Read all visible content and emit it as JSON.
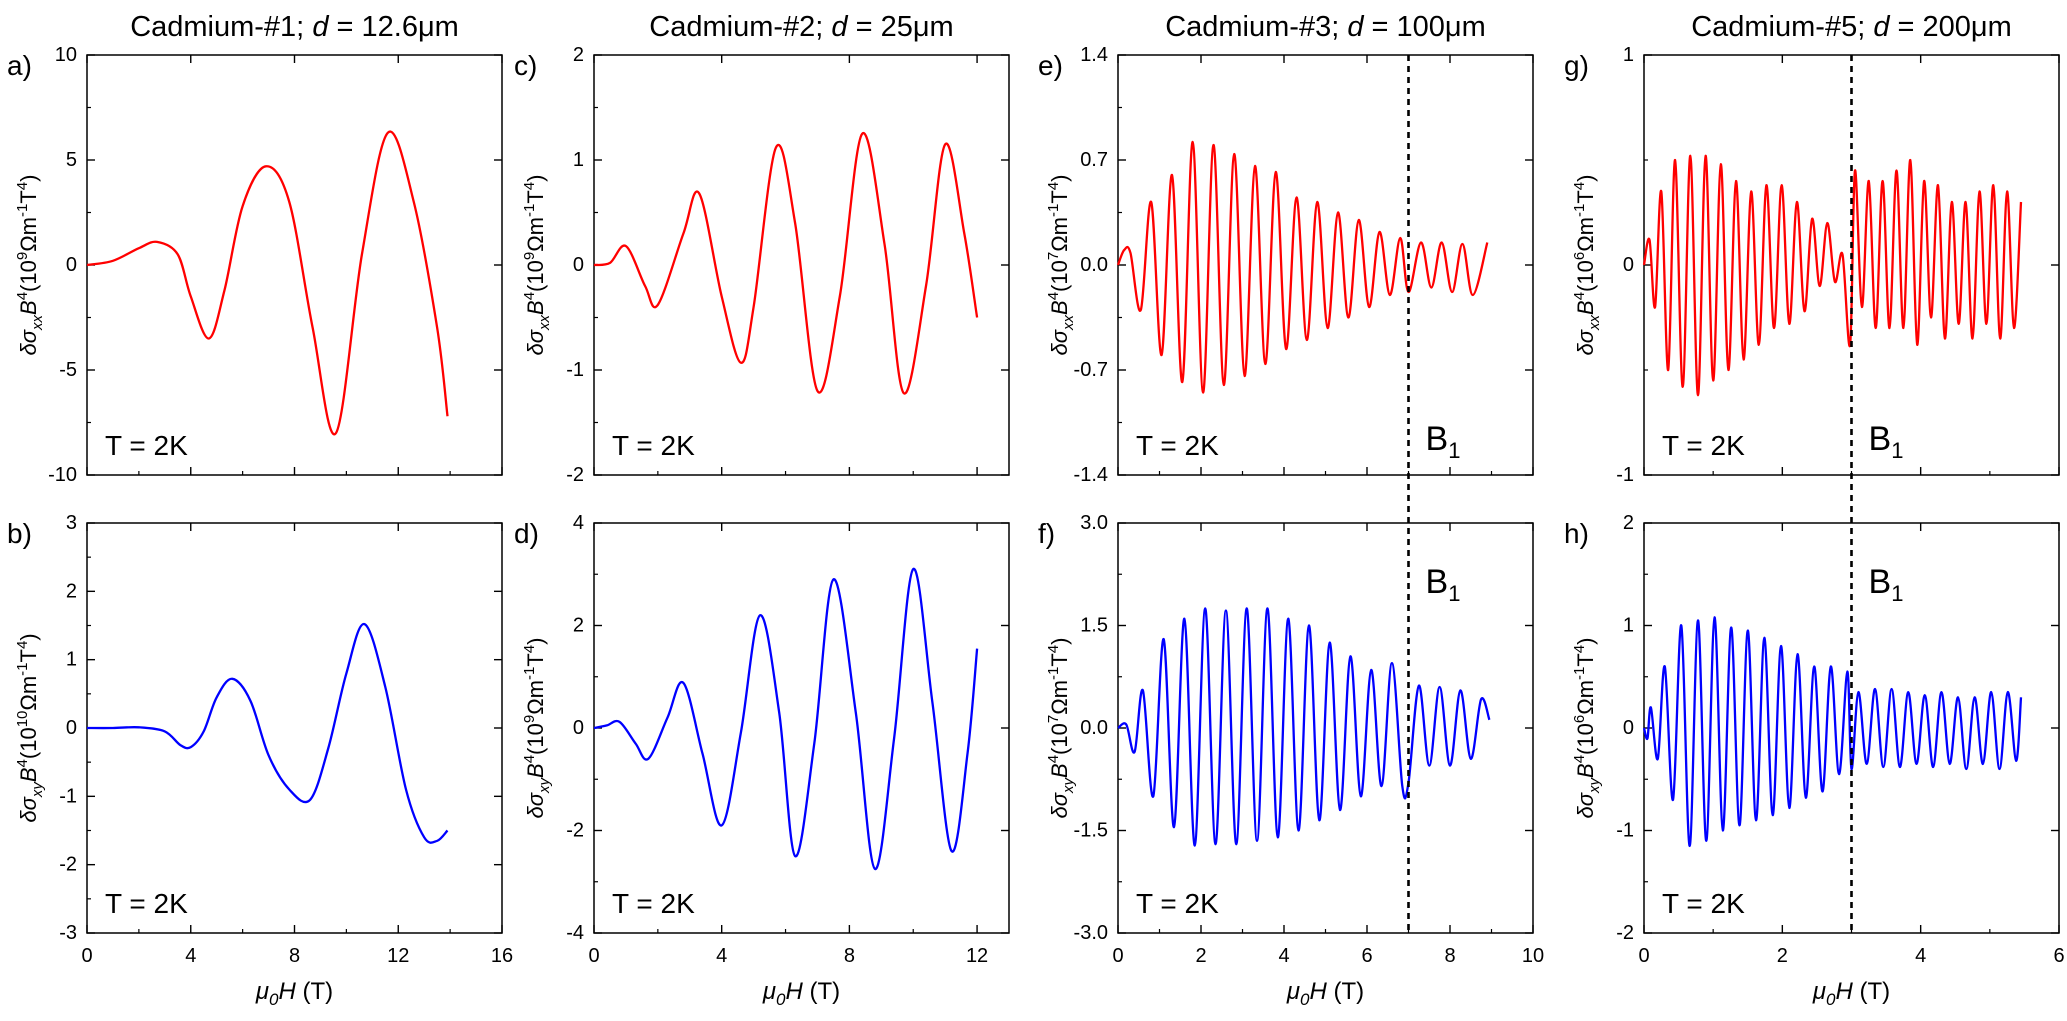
{
  "figure": {
    "x_axis_label": "μ0H (T)",
    "condition_label": "T = 2K",
    "marker_label": "B1"
  },
  "columns": [
    {
      "title": "Cadmium-#1; d = 12.6μm",
      "sample": "Cadmium-#1",
      "thickness": "12.6μm"
    },
    {
      "title": "Cadmium-#2; d = 25μm",
      "sample": "Cadmium-#2",
      "thickness": "25μm"
    },
    {
      "title": "Cadmium-#3; d = 100μm",
      "sample": "Cadmium-#3",
      "thickness": "100μm"
    },
    {
      "title": "Cadmium-#5; d = 200μm",
      "sample": "Cadmium-#5",
      "thickness": "200μm"
    }
  ],
  "chart_data": [
    {
      "type": "line",
      "panel": "a)",
      "component": "xx",
      "color": "#ff0000",
      "ylabel": "δσxxB4(10^9Ωm^-1T^4)",
      "y_unit": "10^9Ωm^-1T^4",
      "xlabel": "μ0H (T)",
      "xlim": [
        0,
        16
      ],
      "ylim": [
        -10,
        10
      ],
      "xticks": [
        "0",
        "4",
        "8",
        "12",
        "16"
      ],
      "yticks": [
        "-10",
        "-5",
        "0",
        "5",
        "10"
      ],
      "annotation": "T = 2K",
      "vline": null,
      "x": [
        0,
        1,
        2,
        2.7,
        3.5,
        4.0,
        4.7,
        5.3,
        6.0,
        6.9,
        7.8,
        8.7,
        9.6,
        10.6,
        11.6,
        12.6,
        13.5,
        13.9
      ],
      "y": [
        0,
        0.2,
        0.8,
        1.1,
        0.5,
        -1.5,
        -3.5,
        -1.2,
        2.8,
        4.7,
        3.0,
        -3.0,
        -8.0,
        0.5,
        6.3,
        3.0,
        -3.0,
        -7.2
      ]
    },
    {
      "type": "line",
      "panel": "b)",
      "component": "xy",
      "color": "#0000ff",
      "ylabel": "δσxyB4(10^10Ωm^-1T^4)",
      "y_unit": "10^10Ωm^-1T^4",
      "xlabel": "μ0H (T)",
      "xlim": [
        0,
        16
      ],
      "ylim": [
        -3,
        3
      ],
      "xticks": [
        "0",
        "4",
        "8",
        "12",
        "16"
      ],
      "yticks": [
        "-3",
        "-2",
        "-1",
        "0",
        "1",
        "2",
        "3"
      ],
      "annotation": "T = 2K",
      "vline": null,
      "x": [
        0,
        1,
        2,
        3,
        3.6,
        4.0,
        4.5,
        5.0,
        5.6,
        6.3,
        7.0,
        7.8,
        8.6,
        9.3,
        10.0,
        10.7,
        11.5,
        12.3,
        13.0,
        13.5,
        13.9
      ],
      "y": [
        0,
        0,
        0.01,
        -0.05,
        -0.25,
        -0.28,
        -0.05,
        0.45,
        0.72,
        0.4,
        -0.4,
        -0.9,
        -1.05,
        -0.3,
        0.8,
        1.52,
        0.6,
        -0.9,
        -1.6,
        -1.65,
        -1.5
      ]
    },
    {
      "type": "line",
      "panel": "c)",
      "component": "xx",
      "color": "#ff0000",
      "ylabel": "δσxxB4(10^9Ωm^-1T^4)",
      "y_unit": "10^9Ωm^-1T^4",
      "xlabel": "μ0H (T)",
      "xlim": [
        0,
        13
      ],
      "ylim": [
        -2,
        2
      ],
      "xticks": [
        "0",
        "4",
        "8",
        "12"
      ],
      "yticks": [
        "-2",
        "-1",
        "0",
        "1",
        "2"
      ],
      "annotation": "T = 2K",
      "vline": null,
      "x": [
        0,
        0.5,
        1.0,
        1.6,
        2.0,
        2.8,
        3.3,
        4.0,
        4.6,
        5.0,
        5.7,
        6.3,
        7.0,
        7.7,
        8.4,
        9.1,
        9.7,
        10.4,
        11.0,
        11.6,
        12.0
      ],
      "y": [
        0,
        0.02,
        0.18,
        -0.2,
        -0.38,
        0.3,
        0.68,
        -0.3,
        -0.93,
        -0.4,
        1.12,
        0.4,
        -1.2,
        -0.3,
        1.25,
        0.2,
        -1.22,
        -0.2,
        1.15,
        0.3,
        -0.5
      ]
    },
    {
      "type": "line",
      "panel": "d)",
      "component": "xy",
      "color": "#0000ff",
      "ylabel": "δσxyB4(10^9Ωm^-1T^4)",
      "y_unit": "10^9Ωm^-1T^4",
      "xlabel": "μ0H (T)",
      "xlim": [
        0,
        13
      ],
      "ylim": [
        -4,
        4
      ],
      "xticks": [
        "0",
        "4",
        "8",
        "12"
      ],
      "yticks": [
        "-4",
        "-2",
        "0",
        "2",
        "4"
      ],
      "annotation": "T = 2K",
      "vline": null,
      "x": [
        0,
        0.4,
        0.8,
        1.3,
        1.7,
        2.3,
        2.8,
        3.4,
        4.0,
        4.6,
        5.2,
        5.8,
        6.3,
        6.9,
        7.5,
        8.2,
        8.8,
        9.4,
        10.0,
        10.6,
        11.2,
        11.7,
        12.0
      ],
      "y": [
        0,
        0.05,
        0.12,
        -0.3,
        -0.6,
        0.2,
        0.88,
        -0.5,
        -1.9,
        -0.1,
        2.2,
        0.3,
        -2.5,
        -0.3,
        2.9,
        0.3,
        -2.75,
        -0.2,
        3.1,
        0.5,
        -2.4,
        -0.5,
        1.55
      ]
    },
    {
      "type": "line",
      "panel": "e)",
      "component": "xx",
      "color": "#ff0000",
      "ylabel": "δσxxB4(10^7Ωm^-1T^4)",
      "y_unit": "10^7Ωm^-1T^4",
      "xlabel": "μ0H (T)",
      "xlim": [
        0,
        10
      ],
      "ylim": [
        -1.4,
        1.4
      ],
      "xticks": [
        "0",
        "2",
        "4",
        "6",
        "8",
        "10"
      ],
      "yticks": [
        "-1.4",
        "-0.7",
        "0.0",
        "0.7",
        "1.4"
      ],
      "annotation": "T = 2K",
      "vline": 7.0,
      "x": [
        0,
        0.15,
        0.3,
        0.55,
        0.8,
        1.05,
        1.3,
        1.55,
        1.8,
        2.05,
        2.3,
        2.55,
        2.8,
        3.05,
        3.3,
        3.55,
        3.8,
        4.05,
        4.3,
        4.55,
        4.8,
        5.05,
        5.3,
        5.55,
        5.8,
        6.05,
        6.3,
        6.55,
        6.8,
        7.0,
        7.3,
        7.55,
        7.8,
        8.05,
        8.3,
        8.55,
        8.9
      ],
      "y": [
        0,
        0.1,
        0.08,
        -0.3,
        0.42,
        -0.6,
        0.6,
        -0.78,
        0.82,
        -0.85,
        0.8,
        -0.8,
        0.74,
        -0.74,
        0.66,
        -0.66,
        0.62,
        -0.56,
        0.45,
        -0.5,
        0.42,
        -0.42,
        0.35,
        -0.35,
        0.3,
        -0.28,
        0.22,
        -0.2,
        0.18,
        -0.18,
        0.15,
        -0.15,
        0.15,
        -0.18,
        0.14,
        -0.2,
        0.15
      ]
    },
    {
      "type": "line",
      "panel": "f)",
      "component": "xy",
      "color": "#0000ff",
      "ylabel": "δσxyB4(10^7Ωm^-1T^4)",
      "y_unit": "10^7Ωm^-1T^4",
      "xlabel": "μ0H (T)",
      "xlim": [
        0,
        10
      ],
      "ylim": [
        -3.0,
        3.0
      ],
      "xticks": [
        "0",
        "2",
        "4",
        "6",
        "8",
        "10"
      ],
      "yticks": [
        "-3.0",
        "-1.5",
        "0.0",
        "1.5",
        "3.0"
      ],
      "annotation": "T = 2K",
      "vline": 7.0,
      "x": [
        0,
        0.2,
        0.4,
        0.6,
        0.85,
        1.1,
        1.35,
        1.6,
        1.85,
        2.1,
        2.35,
        2.6,
        2.85,
        3.1,
        3.35,
        3.6,
        3.85,
        4.1,
        4.35,
        4.6,
        4.85,
        5.1,
        5.35,
        5.6,
        5.85,
        6.1,
        6.35,
        6.6,
        6.85,
        7.0,
        7.25,
        7.5,
        7.75,
        8.0,
        8.25,
        8.5,
        8.75,
        8.95
      ],
      "y": [
        0,
        0.05,
        -0.35,
        0.55,
        -1.0,
        1.3,
        -1.45,
        1.6,
        -1.72,
        1.75,
        -1.7,
        1.72,
        -1.7,
        1.75,
        -1.65,
        1.75,
        -1.6,
        1.6,
        -1.5,
        1.5,
        -1.35,
        1.25,
        -1.2,
        1.05,
        -1.0,
        0.85,
        -0.85,
        0.95,
        -0.85,
        -0.8,
        0.62,
        -0.55,
        0.6,
        -0.55,
        0.55,
        -0.45,
        0.42,
        0.12
      ]
    },
    {
      "type": "line",
      "panel": "g)",
      "component": "xx",
      "color": "#ff0000",
      "ylabel": "δσxxB4(10^6Ωm^-1T^4)",
      "y_unit": "10^6Ωm^-1T^4",
      "xlabel": "μ0H (T)",
      "xlim": [
        0,
        6
      ],
      "ylim": [
        -1,
        1
      ],
      "xticks": [
        "0",
        "2",
        "4",
        "6"
      ],
      "yticks": [
        "-1",
        "0",
        "1"
      ],
      "annotation": "T = 2K",
      "vline": 3.0,
      "x": [
        0,
        0.08,
        0.16,
        0.25,
        0.35,
        0.45,
        0.56,
        0.67,
        0.78,
        0.89,
        1.0,
        1.11,
        1.22,
        1.33,
        1.44,
        1.55,
        1.66,
        1.77,
        1.88,
        1.99,
        2.1,
        2.21,
        2.32,
        2.43,
        2.54,
        2.65,
        2.76,
        2.87,
        2.98,
        3.05,
        3.15,
        3.25,
        3.35,
        3.45,
        3.55,
        3.65,
        3.75,
        3.85,
        3.95,
        4.05,
        4.15,
        4.25,
        4.35,
        4.45,
        4.55,
        4.65,
        4.75,
        4.85,
        4.95,
        5.05,
        5.15,
        5.25,
        5.35,
        5.45
      ],
      "y": [
        0,
        0.12,
        -0.2,
        0.35,
        -0.5,
        0.5,
        -0.58,
        0.52,
        -0.62,
        0.52,
        -0.55,
        0.48,
        -0.5,
        0.4,
        -0.45,
        0.35,
        -0.38,
        0.38,
        -0.3,
        0.38,
        -0.28,
        0.3,
        -0.22,
        0.22,
        -0.1,
        0.2,
        -0.08,
        0.05,
        -0.38,
        0.45,
        -0.2,
        0.4,
        -0.3,
        0.4,
        -0.3,
        0.45,
        -0.3,
        0.5,
        -0.38,
        0.4,
        -0.25,
        0.38,
        -0.35,
        0.3,
        -0.28,
        0.3,
        -0.35,
        0.35,
        -0.28,
        0.38,
        -0.35,
        0.35,
        -0.3,
        0.3
      ]
    },
    {
      "type": "line",
      "panel": "h)",
      "component": "xy",
      "color": "#0000ff",
      "ylabel": "δσxyB4(10^6Ωm^-1T^4)",
      "y_unit": "10^6Ωm^-1T^4",
      "xlabel": "μ0H (T)",
      "xlim": [
        0,
        6
      ],
      "ylim": [
        -2,
        2
      ],
      "xticks": [
        "0",
        "2",
        "4",
        "6"
      ],
      "yticks": [
        "-2",
        "-1",
        "0",
        "1",
        "2"
      ],
      "annotation": "T = 2K",
      "vline": 3.0,
      "x": [
        0,
        0.05,
        0.1,
        0.2,
        0.3,
        0.42,
        0.54,
        0.66,
        0.78,
        0.9,
        1.02,
        1.14,
        1.26,
        1.38,
        1.5,
        1.62,
        1.74,
        1.86,
        1.98,
        2.1,
        2.22,
        2.34,
        2.46,
        2.58,
        2.7,
        2.82,
        2.94,
        3.0,
        3.1,
        3.22,
        3.34,
        3.46,
        3.58,
        3.7,
        3.82,
        3.94,
        4.06,
        4.18,
        4.3,
        4.42,
        4.54,
        4.66,
        4.78,
        4.9,
        5.02,
        5.14,
        5.26,
        5.38,
        5.45
      ],
      "y": [
        0,
        -0.1,
        0.2,
        -0.3,
        0.6,
        -0.7,
        1.0,
        -1.15,
        1.05,
        -1.1,
        1.08,
        -1.0,
        0.98,
        -0.95,
        0.95,
        -0.9,
        0.88,
        -0.85,
        0.8,
        -0.78,
        0.72,
        -0.68,
        0.6,
        -0.62,
        0.6,
        -0.45,
        0.55,
        -0.4,
        0.35,
        -0.35,
        0.38,
        -0.38,
        0.38,
        -0.38,
        0.35,
        -0.35,
        0.32,
        -0.38,
        0.35,
        -0.35,
        0.3,
        -0.4,
        0.3,
        -0.35,
        0.35,
        -0.4,
        0.35,
        -0.32,
        0.3
      ]
    }
  ]
}
